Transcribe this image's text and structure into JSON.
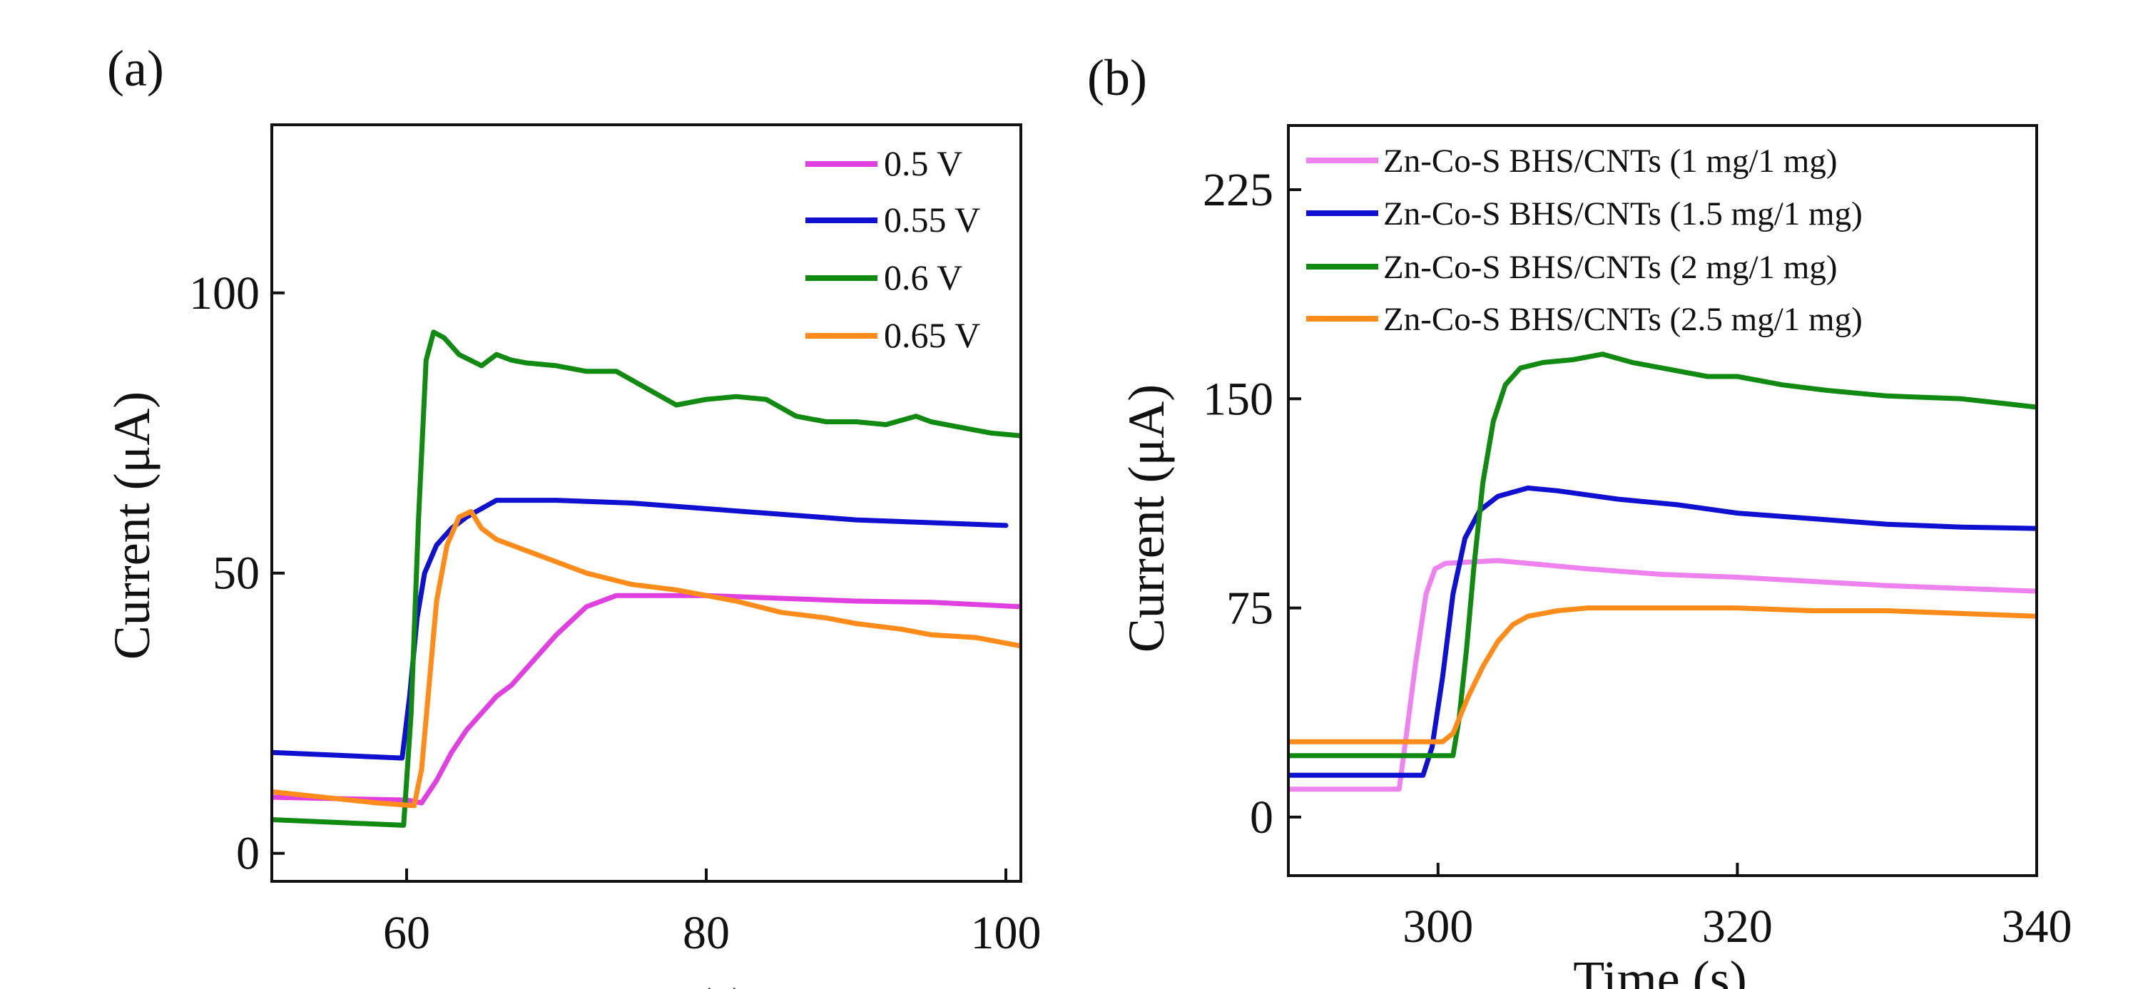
{
  "chart_data": [
    {
      "panel_label": "(a)",
      "type": "line",
      "xlabel": "Time (s)",
      "ylabel": "Current (μA)",
      "xlim": [
        51,
        101
      ],
      "ylim": [
        -5,
        130
      ],
      "xticks": [
        60,
        80,
        100
      ],
      "yticks": [
        0,
        50,
        100
      ],
      "grid": false,
      "legend_placement": "top-right",
      "series": [
        {
          "name": "0.5 V",
          "color": "#e040e0",
          "x": [
            51,
            60,
            61,
            62,
            63,
            64,
            65,
            66,
            67,
            68,
            70,
            72,
            74,
            80,
            85,
            90,
            95,
            101
          ],
          "y": [
            10,
            9.5,
            9,
            13,
            18,
            22,
            25,
            28,
            30,
            33,
            39,
            44,
            46,
            46,
            45.5,
            45,
            44.8,
            44
          ]
        },
        {
          "name": "0.55 V",
          "color": "#1010d0",
          "x": [
            51,
            59.7,
            60.2,
            60.7,
            61.2,
            62,
            63,
            64,
            66,
            70,
            75,
            80,
            85,
            90,
            95,
            100
          ],
          "y": [
            18,
            17,
            28,
            42,
            50,
            55,
            58,
            60,
            63,
            63,
            62.5,
            61.5,
            60.5,
            59.5,
            59,
            58.5
          ]
        },
        {
          "name": "0.6 V",
          "color": "#118a11",
          "x": [
            51,
            59.8,
            60.3,
            60.8,
            61.3,
            61.8,
            62.5,
            63.5,
            65,
            66,
            67,
            68,
            70,
            72,
            74,
            76,
            78,
            80,
            82,
            84,
            86,
            88,
            90,
            92,
            94,
            95,
            97,
            99,
            101
          ],
          "y": [
            6,
            5,
            25,
            60,
            88,
            93,
            92,
            89,
            87,
            89,
            88,
            87.5,
            87,
            86,
            86,
            83,
            80,
            81,
            81.5,
            81,
            78,
            77,
            77,
            76.5,
            78,
            77,
            76,
            75,
            74.5
          ]
        },
        {
          "name": "0.65 V",
          "color": "#ff8c1a",
          "x": [
            51,
            58,
            60.5,
            61,
            61.5,
            62,
            62.7,
            63.5,
            64.3,
            65,
            66,
            68,
            70,
            72,
            75,
            78,
            80,
            82,
            85,
            88,
            90,
            93,
            95,
            98,
            101
          ],
          "y": [
            11,
            9,
            8.5,
            15,
            30,
            45,
            55,
            60,
            61,
            58,
            56,
            54,
            52,
            50,
            48,
            47,
            46,
            45,
            43,
            42,
            41,
            40,
            39,
            38.5,
            37
          ]
        }
      ]
    },
    {
      "panel_label": "(b)",
      "type": "line",
      "xlabel": "Time (s)",
      "ylabel": "Current (μA)",
      "xlim": [
        290,
        340
      ],
      "ylim": [
        -21,
        248
      ],
      "xticks": [
        300,
        320,
        340
      ],
      "yticks": [
        0,
        75,
        150,
        225
      ],
      "grid": false,
      "legend_placement": "top-left",
      "series": [
        {
          "name": "Zn-Co-S BHS/CNTs (1 mg/1 mg)",
          "color": "#ee82ee",
          "x": [
            290,
            297.4,
            297.9,
            298.5,
            299.2,
            299.8,
            300.5,
            304,
            310,
            315,
            320,
            325,
            330,
            335,
            340
          ],
          "y": [
            10,
            10,
            30,
            55,
            80,
            89,
            91,
            92,
            89,
            87,
            86,
            84.5,
            83,
            82,
            81
          ]
        },
        {
          "name": "Zn-Co-S BHS/CNTs (1.5 mg/1 mg)",
          "color": "#1010d0",
          "x": [
            290,
            299,
            299.6,
            300.3,
            301,
            301.8,
            302.8,
            304,
            306,
            308,
            312,
            316,
            320,
            325,
            330,
            335,
            340
          ],
          "y": [
            15,
            15,
            25,
            50,
            80,
            100,
            110,
            115,
            118,
            117,
            114,
            112,
            109,
            107,
            105,
            104,
            103.5
          ]
        },
        {
          "name": "Zn-Co-S BHS/CNTs (2 mg/1 mg)",
          "color": "#118a11",
          "x": [
            290,
            301,
            301.4,
            301.9,
            302.4,
            303,
            303.7,
            304.5,
            305.5,
            307,
            309,
            311,
            313,
            315,
            318,
            320,
            323,
            326,
            330,
            335,
            340
          ],
          "y": [
            22,
            22,
            35,
            60,
            90,
            120,
            142,
            155,
            161,
            163,
            164,
            166,
            163,
            161,
            158,
            158,
            155,
            153,
            151,
            150,
            147
          ]
        },
        {
          "name": "Zn-Co-S BHS/CNTs (2.5 mg/1 mg)",
          "color": "#ff8c1a",
          "x": [
            290,
            300.3,
            301,
            302,
            303,
            304,
            305,
            306,
            308,
            310,
            315,
            320,
            325,
            330,
            335,
            340
          ],
          "y": [
            27,
            27,
            30,
            43,
            54,
            63,
            69,
            72,
            74,
            75,
            75,
            75,
            74,
            74,
            73,
            72
          ]
        }
      ]
    }
  ]
}
